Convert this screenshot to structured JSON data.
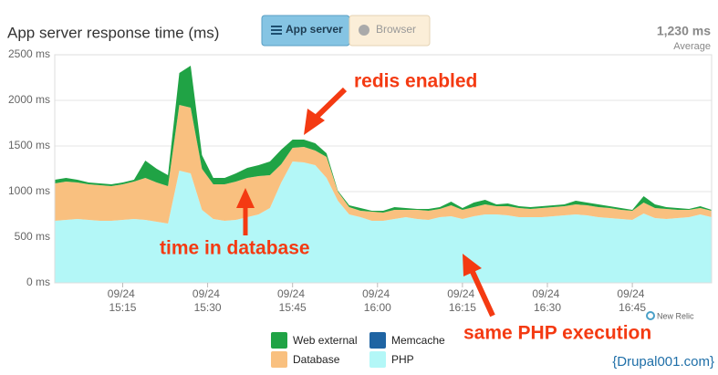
{
  "chart_data": {
    "type": "area",
    "stacked": true,
    "title": "App server response time (ms)",
    "tabs": [
      "App server",
      "Browser"
    ],
    "active_tab": 0,
    "average_label": "1,230 ms",
    "average_caption": "Average",
    "x": [
      "15:03",
      "15:05",
      "15:07",
      "15:09",
      "15:11",
      "15:13",
      "15:15",
      "15:17",
      "15:19",
      "15:21",
      "15:23",
      "15:25",
      "15:27",
      "15:29",
      "15:31",
      "15:33",
      "15:35",
      "15:37",
      "15:39",
      "15:41",
      "15:43",
      "15:45",
      "15:47",
      "15:49",
      "15:51",
      "15:53",
      "15:55",
      "15:57",
      "15:59",
      "16:01",
      "16:03",
      "16:05",
      "16:07",
      "16:09",
      "16:11",
      "16:13",
      "16:15",
      "16:17",
      "16:19",
      "16:21",
      "16:23",
      "16:25",
      "16:27",
      "16:29",
      "16:31",
      "16:33",
      "16:35",
      "16:37",
      "16:39",
      "16:41",
      "16:43",
      "16:45",
      "16:47",
      "16:49",
      "16:51",
      "16:53",
      "16:55",
      "16:57",
      "16:59"
    ],
    "xlim": [
      "15:03",
      "16:59"
    ],
    "xticks": [
      {
        "value": "15:15",
        "label": "09/24 15:15"
      },
      {
        "value": "15:30",
        "label": "09/24 15:30"
      },
      {
        "value": "15:45",
        "label": "09/24 15:45"
      },
      {
        "value": "16:00",
        "label": "09/24 16:00"
      },
      {
        "value": "16:15",
        "label": "09/24 16:15"
      },
      {
        "value": "16:30",
        "label": "09/24 16:30"
      },
      {
        "value": "16:45",
        "label": "09/24 16:45"
      }
    ],
    "ylim": [
      0,
      2500
    ],
    "yticks": [
      {
        "value": 0,
        "label": "0 ms"
      },
      {
        "value": 500,
        "label": "500 ms"
      },
      {
        "value": 1000,
        "label": "1000 ms"
      },
      {
        "value": 1500,
        "label": "1500 ms"
      },
      {
        "value": 2000,
        "label": "2000 ms"
      },
      {
        "value": 2500,
        "label": "2500 ms"
      }
    ],
    "grid": true,
    "series": [
      {
        "name": "PHP",
        "color": "#b3f7f7",
        "values": [
          680,
          690,
          700,
          690,
          680,
          680,
          690,
          700,
          690,
          670,
          650,
          1230,
          1200,
          800,
          700,
          680,
          690,
          720,
          750,
          820,
          1100,
          1330,
          1320,
          1290,
          1150,
          900,
          750,
          720,
          680,
          680,
          700,
          720,
          700,
          690,
          720,
          730,
          700,
          730,
          750,
          750,
          740,
          720,
          720,
          720,
          730,
          740,
          750,
          740,
          720,
          710,
          700,
          690,
          760,
          710,
          700,
          710,
          720,
          750,
          720
        ]
      },
      {
        "name": "Database",
        "color": "#f9c07f",
        "values": [
          410,
          420,
          400,
          390,
          390,
          380,
          390,
          410,
          460,
          430,
          410,
          720,
          720,
          450,
          380,
          400,
          420,
          430,
          420,
          360,
          200,
          150,
          170,
          160,
          230,
          100,
          80,
          70,
          100,
          90,
          100,
          80,
          100,
          100,
          90,
          120,
          100,
          100,
          110,
          90,
          100,
          100,
          90,
          100,
          100,
          100,
          110,
          110,
          110,
          110,
          100,
          100,
          120,
          110,
          110,
          90,
          80,
          70,
          70
        ]
      },
      {
        "name": "Memcache",
        "color": "#1f64a3",
        "values": [
          0,
          0,
          0,
          0,
          0,
          0,
          0,
          0,
          0,
          0,
          0,
          0,
          0,
          0,
          0,
          0,
          0,
          0,
          0,
          0,
          0,
          0,
          0,
          0,
          0,
          0,
          0,
          0,
          0,
          0,
          0,
          0,
          0,
          0,
          0,
          0,
          0,
          0,
          0,
          0,
          0,
          0,
          0,
          0,
          0,
          0,
          0,
          0,
          0,
          0,
          0,
          0,
          0,
          0,
          0,
          0,
          0,
          0,
          0
        ]
      },
      {
        "name": "Web external",
        "color": "#20a345",
        "values": [
          40,
          40,
          30,
          20,
          20,
          20,
          20,
          20,
          190,
          150,
          120,
          350,
          460,
          150,
          70,
          70,
          90,
          110,
          120,
          150,
          160,
          90,
          80,
          80,
          40,
          10,
          20,
          30,
          10,
          20,
          30,
          20,
          10,
          20,
          20,
          40,
          20,
          50,
          50,
          20,
          30,
          20,
          20,
          20,
          20,
          20,
          40,
          30,
          30,
          20,
          20,
          10,
          70,
          40,
          20,
          20,
          10,
          20,
          10
        ]
      }
    ],
    "annotations": [
      "redis enabled",
      "time in database",
      "same PHP execution"
    ],
    "credits": [
      "New Relic",
      "{Drupal001.com}"
    ]
  }
}
